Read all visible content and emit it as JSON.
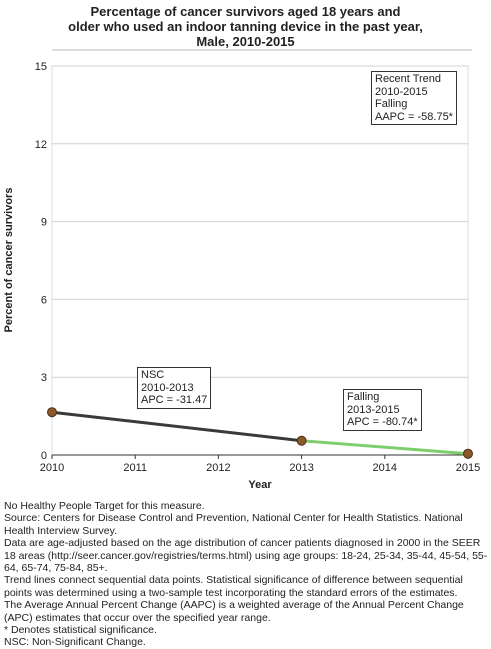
{
  "title_lines": [
    "Percentage of cancer survivors aged 18 years and",
    "older who used an indoor tanning device in the past year,",
    "Male,  2010-2015"
  ],
  "chart_data": {
    "type": "line",
    "xlabel": "Year",
    "ylabel": "Percent of cancer survivors",
    "xlim": [
      2010,
      2015
    ],
    "ylim": [
      0,
      15
    ],
    "x_ticks": [
      "2010",
      "2011",
      "2012",
      "2013",
      "2014",
      "2015"
    ],
    "y_ticks": [
      "0",
      "3",
      "6",
      "9",
      "12",
      "15"
    ],
    "grid": "horizontal",
    "points": [
      {
        "x": 2010,
        "y": 1.65
      },
      {
        "x": 2013,
        "y": 0.55
      },
      {
        "x": 2015,
        "y": 0.05
      }
    ],
    "segments": [
      {
        "from": 2010,
        "to": 2013,
        "color": "#3a3a3a"
      },
      {
        "from": 2013,
        "to": 2015,
        "color": "#7fce6e"
      }
    ],
    "point_color": "#8b5a2b",
    "annotations": [
      {
        "lines": [
          "Recent Trend",
          "2010-2015",
          "Falling",
          "AAPC = -58.75*"
        ],
        "placement": "top-right"
      },
      {
        "lines": [
          "NSC",
          "2010-2013",
          "APC = -31.47"
        ],
        "placement": "above-first-segment"
      },
      {
        "lines": [
          "Falling",
          "2013-2015",
          "APC = -80.74*"
        ],
        "placement": "above-second-segment"
      }
    ]
  },
  "notes": [
    "No Healthy People Target for this measure.",
    "Source: Centers for Disease Control and Prevention, National Center for Health Statistics. National Health Interview Survey.",
    "Data are age-adjusted based on the age distribution of cancer patients diagnosed in 2000 in the SEER 18 areas (http://seer.cancer.gov/registries/terms.html) using age groups: 18-24, 25-34, 35-44, 45-54, 55-64, 65-74, 75-84, 85+.",
    "Trend lines connect sequential data points. Statistical significance of difference between sequential points was determined using a two-sample test incorporating the standard errors of the estimates.",
    "The Average Annual Percent Change (AAPC) is a weighted average of the Annual Percent Change (APC) estimates that occur over the specified year range.",
    "* Denotes statistical significance.",
    "NSC: Non-Significant Change."
  ]
}
